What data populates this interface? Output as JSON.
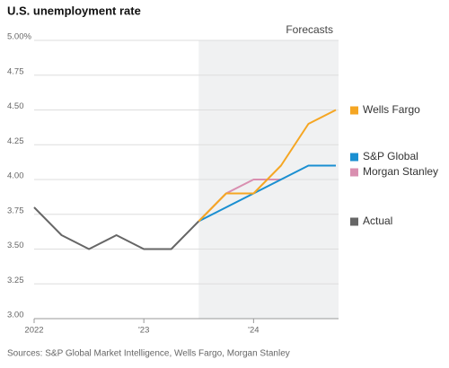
{
  "chart_data": {
    "type": "line",
    "title": "U.S. unemployment rate",
    "source": "Sources: S&P Global Market Intelligence, Wells Fargo, Morgan Stanley",
    "annotations": [
      {
        "text": "Forecasts",
        "x_start": 6
      }
    ],
    "categories": [
      "2022",
      null,
      null,
      null,
      "'23",
      null,
      null,
      null,
      "'24",
      null,
      null,
      null
    ],
    "series": [
      {
        "name": "Wells Fargo",
        "color": "#f5a623",
        "values": [
          null,
          null,
          null,
          null,
          null,
          null,
          3.7,
          3.9,
          3.9,
          4.1,
          4.4,
          4.5
        ]
      },
      {
        "name": "S&P Global",
        "color": "#1a8fd1",
        "values": [
          null,
          null,
          null,
          null,
          null,
          null,
          3.7,
          3.8,
          3.9,
          4.0,
          4.1,
          4.1
        ]
      },
      {
        "name": "Morgan Stanley",
        "color": "#d98fb0",
        "values": [
          null,
          null,
          null,
          null,
          null,
          null,
          3.7,
          3.9,
          4.0,
          4.0,
          null,
          null
        ]
      },
      {
        "name": "Actual",
        "color": "#666666",
        "values": [
          3.8,
          3.6,
          3.5,
          3.6,
          3.5,
          3.5,
          3.7,
          null,
          null,
          null,
          null,
          null
        ]
      }
    ],
    "ylim": [
      3,
      5
    ],
    "yticks": [
      {
        "value": 3,
        "label": "3.00"
      },
      {
        "value": 3.25,
        "label": "3.25"
      },
      {
        "value": 3.5,
        "label": "3.50"
      },
      {
        "value": 3.75,
        "label": "3.75"
      },
      {
        "value": 4,
        "label": "4.00"
      },
      {
        "value": 4.25,
        "label": "4.25"
      },
      {
        "value": 4.5,
        "label": "4.50"
      },
      {
        "value": 4.75,
        "label": "4.75"
      },
      {
        "value": 5,
        "label": "5.00%"
      }
    ],
    "grid": true
  }
}
